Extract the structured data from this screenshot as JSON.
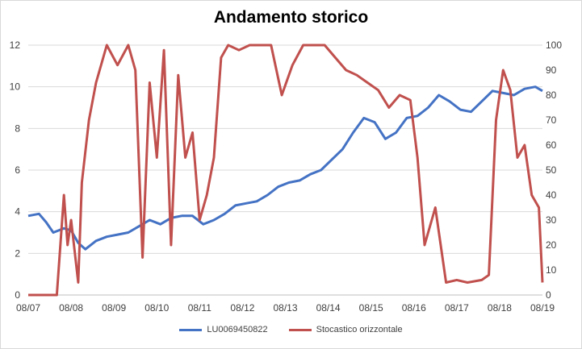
{
  "chart_data": {
    "type": "line",
    "title": "Andamento storico",
    "x_ticks": [
      "08/07",
      "08/08",
      "08/09",
      "08/10",
      "08/11",
      "08/12",
      "08/13",
      "08/14",
      "08/15",
      "08/16",
      "08/17",
      "08/18",
      "08/19"
    ],
    "y_left": {
      "min": 0,
      "max": 12,
      "ticks": [
        0,
        2,
        4,
        6,
        8,
        10,
        12
      ]
    },
    "y_right": {
      "min": 0,
      "max": 100,
      "ticks": [
        0,
        10,
        20,
        30,
        40,
        50,
        60,
        70,
        80,
        90,
        100
      ]
    },
    "grid": true,
    "legend_position": "bottom",
    "series": [
      {
        "name": "LU0069450822",
        "axis": "left",
        "color": "#4472c4",
        "x": [
          "2007-08",
          "2007-11",
          "2008-01",
          "2008-03",
          "2008-06",
          "2008-08",
          "2008-10",
          "2008-12",
          "2009-03",
          "2009-06",
          "2009-09",
          "2009-12",
          "2010-03",
          "2010-06",
          "2010-09",
          "2010-12",
          "2011-03",
          "2011-06",
          "2011-09",
          "2011-12",
          "2012-03",
          "2012-06",
          "2012-09",
          "2012-12",
          "2013-03",
          "2013-06",
          "2013-09",
          "2013-12",
          "2014-03",
          "2014-06",
          "2014-09",
          "2014-12",
          "2015-03",
          "2015-06",
          "2015-09",
          "2015-12",
          "2016-03",
          "2016-06",
          "2016-09",
          "2016-12",
          "2017-03",
          "2017-06",
          "2017-09",
          "2017-12",
          "2018-03",
          "2018-06",
          "2018-09",
          "2018-12",
          "2019-03",
          "2019-06",
          "2019-08"
        ],
        "y": [
          3.8,
          3.9,
          3.5,
          3.0,
          3.2,
          3.1,
          2.5,
          2.2,
          2.6,
          2.8,
          2.9,
          3.0,
          3.3,
          3.6,
          3.4,
          3.7,
          3.8,
          3.8,
          3.4,
          3.6,
          3.9,
          4.3,
          4.4,
          4.5,
          4.8,
          5.2,
          5.4,
          5.5,
          5.8,
          6.0,
          6.5,
          7.0,
          7.8,
          8.5,
          8.3,
          7.5,
          7.8,
          8.5,
          8.6,
          9.0,
          9.6,
          9.3,
          8.9,
          8.8,
          9.3,
          9.8,
          9.7,
          9.6,
          9.9,
          10.0,
          9.8
        ]
      },
      {
        "name": "Stocastico orizzontale",
        "axis": "right",
        "color": "#c0504d",
        "x": [
          "2007-08",
          "2008-04",
          "2008-06",
          "2008-07",
          "2008-08",
          "2008-10",
          "2008-11",
          "2009-01",
          "2009-03",
          "2009-06",
          "2009-09",
          "2009-12",
          "2010-02",
          "2010-04",
          "2010-06",
          "2010-08",
          "2010-10",
          "2010-12",
          "2011-02",
          "2011-04",
          "2011-06",
          "2011-08",
          "2011-10",
          "2011-12",
          "2012-02",
          "2012-04",
          "2012-07",
          "2012-10",
          "2013-01",
          "2013-04",
          "2013-07",
          "2013-10",
          "2014-01",
          "2014-04",
          "2014-07",
          "2014-10",
          "2015-01",
          "2015-04",
          "2015-07",
          "2015-10",
          "2016-01",
          "2016-04",
          "2016-07",
          "2016-09",
          "2016-11",
          "2017-02",
          "2017-05",
          "2017-08",
          "2017-11",
          "2018-03",
          "2018-05",
          "2018-07",
          "2018-09",
          "2018-11",
          "2019-01",
          "2019-03",
          "2019-05",
          "2019-07",
          "2019-08"
        ],
        "y": [
          0,
          0,
          40,
          20,
          30,
          5,
          45,
          70,
          85,
          100,
          92,
          100,
          90,
          15,
          85,
          55,
          98,
          20,
          88,
          55,
          65,
          30,
          40,
          55,
          95,
          100,
          98,
          100,
          100,
          100,
          80,
          92,
          100,
          100,
          100,
          95,
          90,
          88,
          85,
          82,
          75,
          80,
          78,
          55,
          20,
          35,
          5,
          6,
          5,
          6,
          8,
          70,
          90,
          82,
          55,
          60,
          40,
          35,
          5
        ]
      }
    ]
  }
}
